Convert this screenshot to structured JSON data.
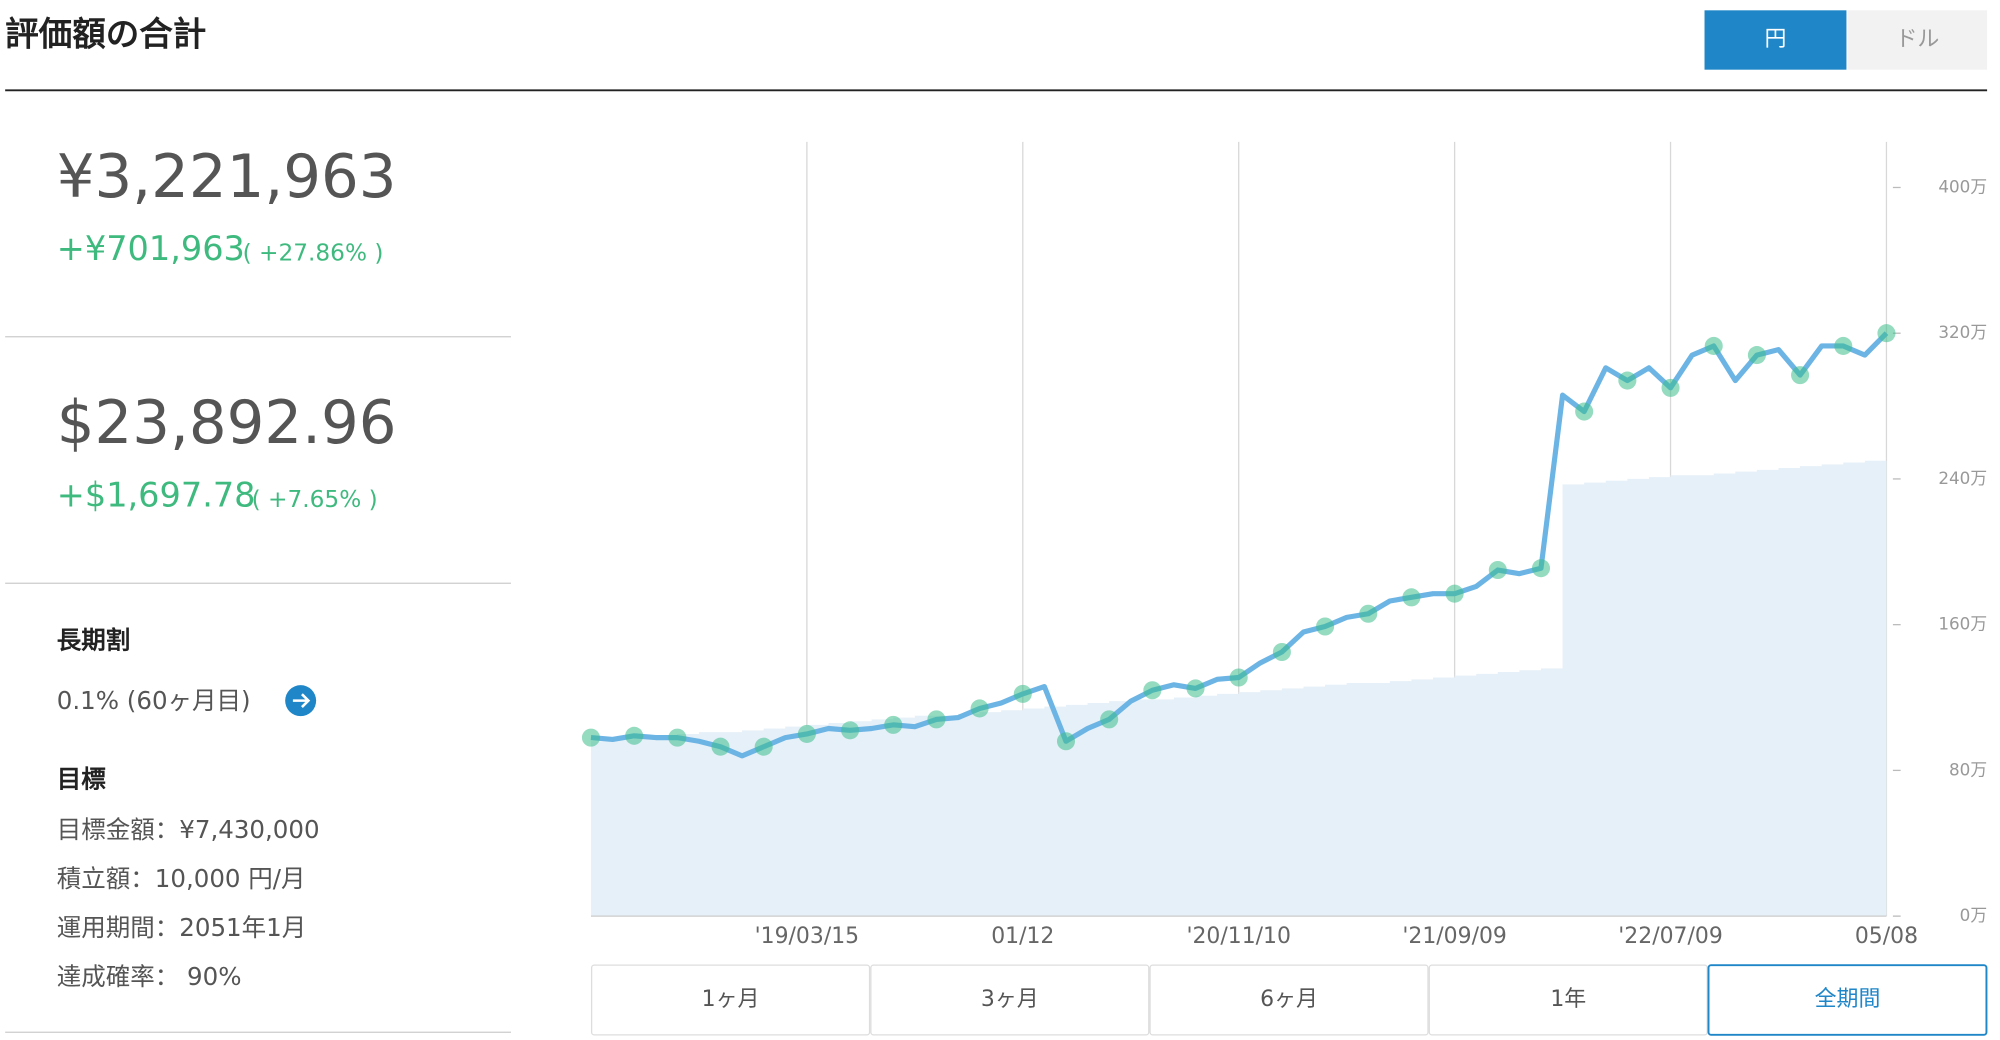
{
  "header": {
    "title": "評価額の合計",
    "currency_toggle": [
      "円",
      "ドル"
    ]
  },
  "summary": {
    "jpy": {
      "total": "¥3,221,963",
      "gain": "+¥701,963",
      "gain_pct": "( +27.86% )"
    },
    "usd": {
      "total": "$23,892.96",
      "gain": "+$1,697.78",
      "gain_pct": "( +7.65% )"
    }
  },
  "long_term": {
    "title": "長期割",
    "text": "0.1% (60ヶ月目)"
  },
  "goal": {
    "title": "目標",
    "items": [
      "目標金額：¥7,430,000",
      "積立額：10,000 円/月",
      "運用期間：2051年1月",
      "達成確率： 90%"
    ]
  },
  "chart_data": {
    "type": "line",
    "categories": [
      null,
      null,
      null,
      null,
      null,
      null,
      null,
      null,
      null,
      null,
      "'19/03/15",
      null,
      null,
      null,
      null,
      null,
      null,
      null,
      null,
      null,
      "01/12",
      null,
      null,
      null,
      null,
      null,
      null,
      null,
      null,
      null,
      "'20/11/10",
      null,
      null,
      null,
      null,
      null,
      null,
      null,
      null,
      null,
      "'21/09/09",
      null,
      null,
      null,
      null,
      null,
      null,
      null,
      null,
      null,
      "'22/07/09",
      null,
      null,
      null,
      null,
      null,
      null,
      null,
      null,
      null,
      "05/08"
    ],
    "series": [
      {
        "type": "area",
        "color": "#e6f0f8",
        "values": [
          960000,
          970000,
          980000,
          990000,
          1000000,
          1010000,
          1010000,
          1020000,
          1030000,
          1040000,
          1050000,
          1060000,
          1070000,
          1080000,
          1090000,
          1100000,
          1100000,
          1110000,
          1120000,
          1130000,
          1140000,
          1150000,
          1160000,
          1170000,
          1180000,
          1190000,
          1190000,
          1200000,
          1210000,
          1220000,
          1230000,
          1240000,
          1250000,
          1260000,
          1270000,
          1280000,
          1280000,
          1290000,
          1300000,
          1310000,
          1320000,
          1330000,
          1340000,
          1350000,
          1360000,
          2370000,
          2380000,
          2390000,
          2400000,
          2410000,
          2420000,
          2420000,
          2430000,
          2440000,
          2450000,
          2460000,
          2470000,
          2480000,
          2490000,
          2500000,
          2510000
        ]
      },
      {
        "type": "line",
        "color": "#6cb4e4",
        "marker_color": "#3cbe8c",
        "values": [
          980000,
          970000,
          990000,
          980000,
          980000,
          960000,
          930000,
          880000,
          930000,
          980000,
          1000000,
          1030000,
          1020000,
          1030000,
          1050000,
          1040000,
          1080000,
          1090000,
          1140000,
          1170000,
          1220000,
          1260000,
          960000,
          1030000,
          1080000,
          1180000,
          1240000,
          1270000,
          1250000,
          1300000,
          1310000,
          1390000,
          1450000,
          1560000,
          1590000,
          1640000,
          1660000,
          1730000,
          1750000,
          1770000,
          1770000,
          1810000,
          1900000,
          1880000,
          1910000,
          2860000,
          2770000,
          3010000,
          2940000,
          3010000,
          2900000,
          3080000,
          3130000,
          2940000,
          3080000,
          3110000,
          2970000,
          3130000,
          3130000,
          3080000,
          3200000
        ]
      }
    ],
    "ylim": [
      0,
      4250000
    ],
    "yticks": [
      {
        "value": 0,
        "label": "0万"
      },
      {
        "value": 800000,
        "label": "80万"
      },
      {
        "value": 1600000,
        "label": "160万"
      },
      {
        "value": 2400000,
        "label": "240万"
      },
      {
        "value": 3200000,
        "label": "320万"
      },
      {
        "value": 4000000,
        "label": "400万"
      }
    ],
    "grid": true
  },
  "controls": {
    "ranges": [
      "1ヶ月",
      "3ヶ月",
      "6ヶ月",
      "1年",
      "全期間"
    ],
    "selected": 4
  }
}
